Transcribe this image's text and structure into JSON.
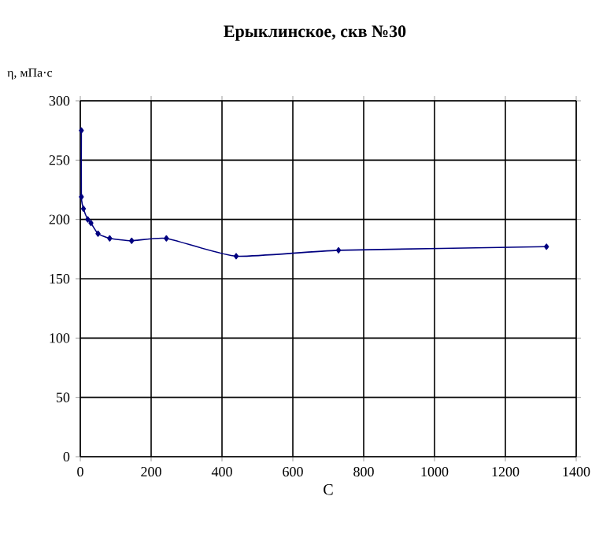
{
  "chart_data": {
    "type": "line",
    "title": "Ерыклинское, скв №30",
    "xlabel": "С",
    "ylabel": "η, мПа·с",
    "x": [
      3,
      3,
      9,
      21,
      30,
      50,
      83,
      145,
      243,
      440,
      729,
      1316
    ],
    "values": [
      275,
      219,
      209,
      200,
      197,
      188,
      184,
      182,
      184,
      169,
      174,
      177
    ],
    "color": "#000080",
    "marker": "diamond",
    "grid": true,
    "xlim": [
      0,
      1400
    ],
    "xticks": [
      0,
      200,
      400,
      600,
      800,
      1000,
      1200,
      1400
    ],
    "ylim": [
      0,
      300
    ],
    "yticks": [
      0,
      50,
      100,
      150,
      200,
      250,
      300
    ]
  }
}
